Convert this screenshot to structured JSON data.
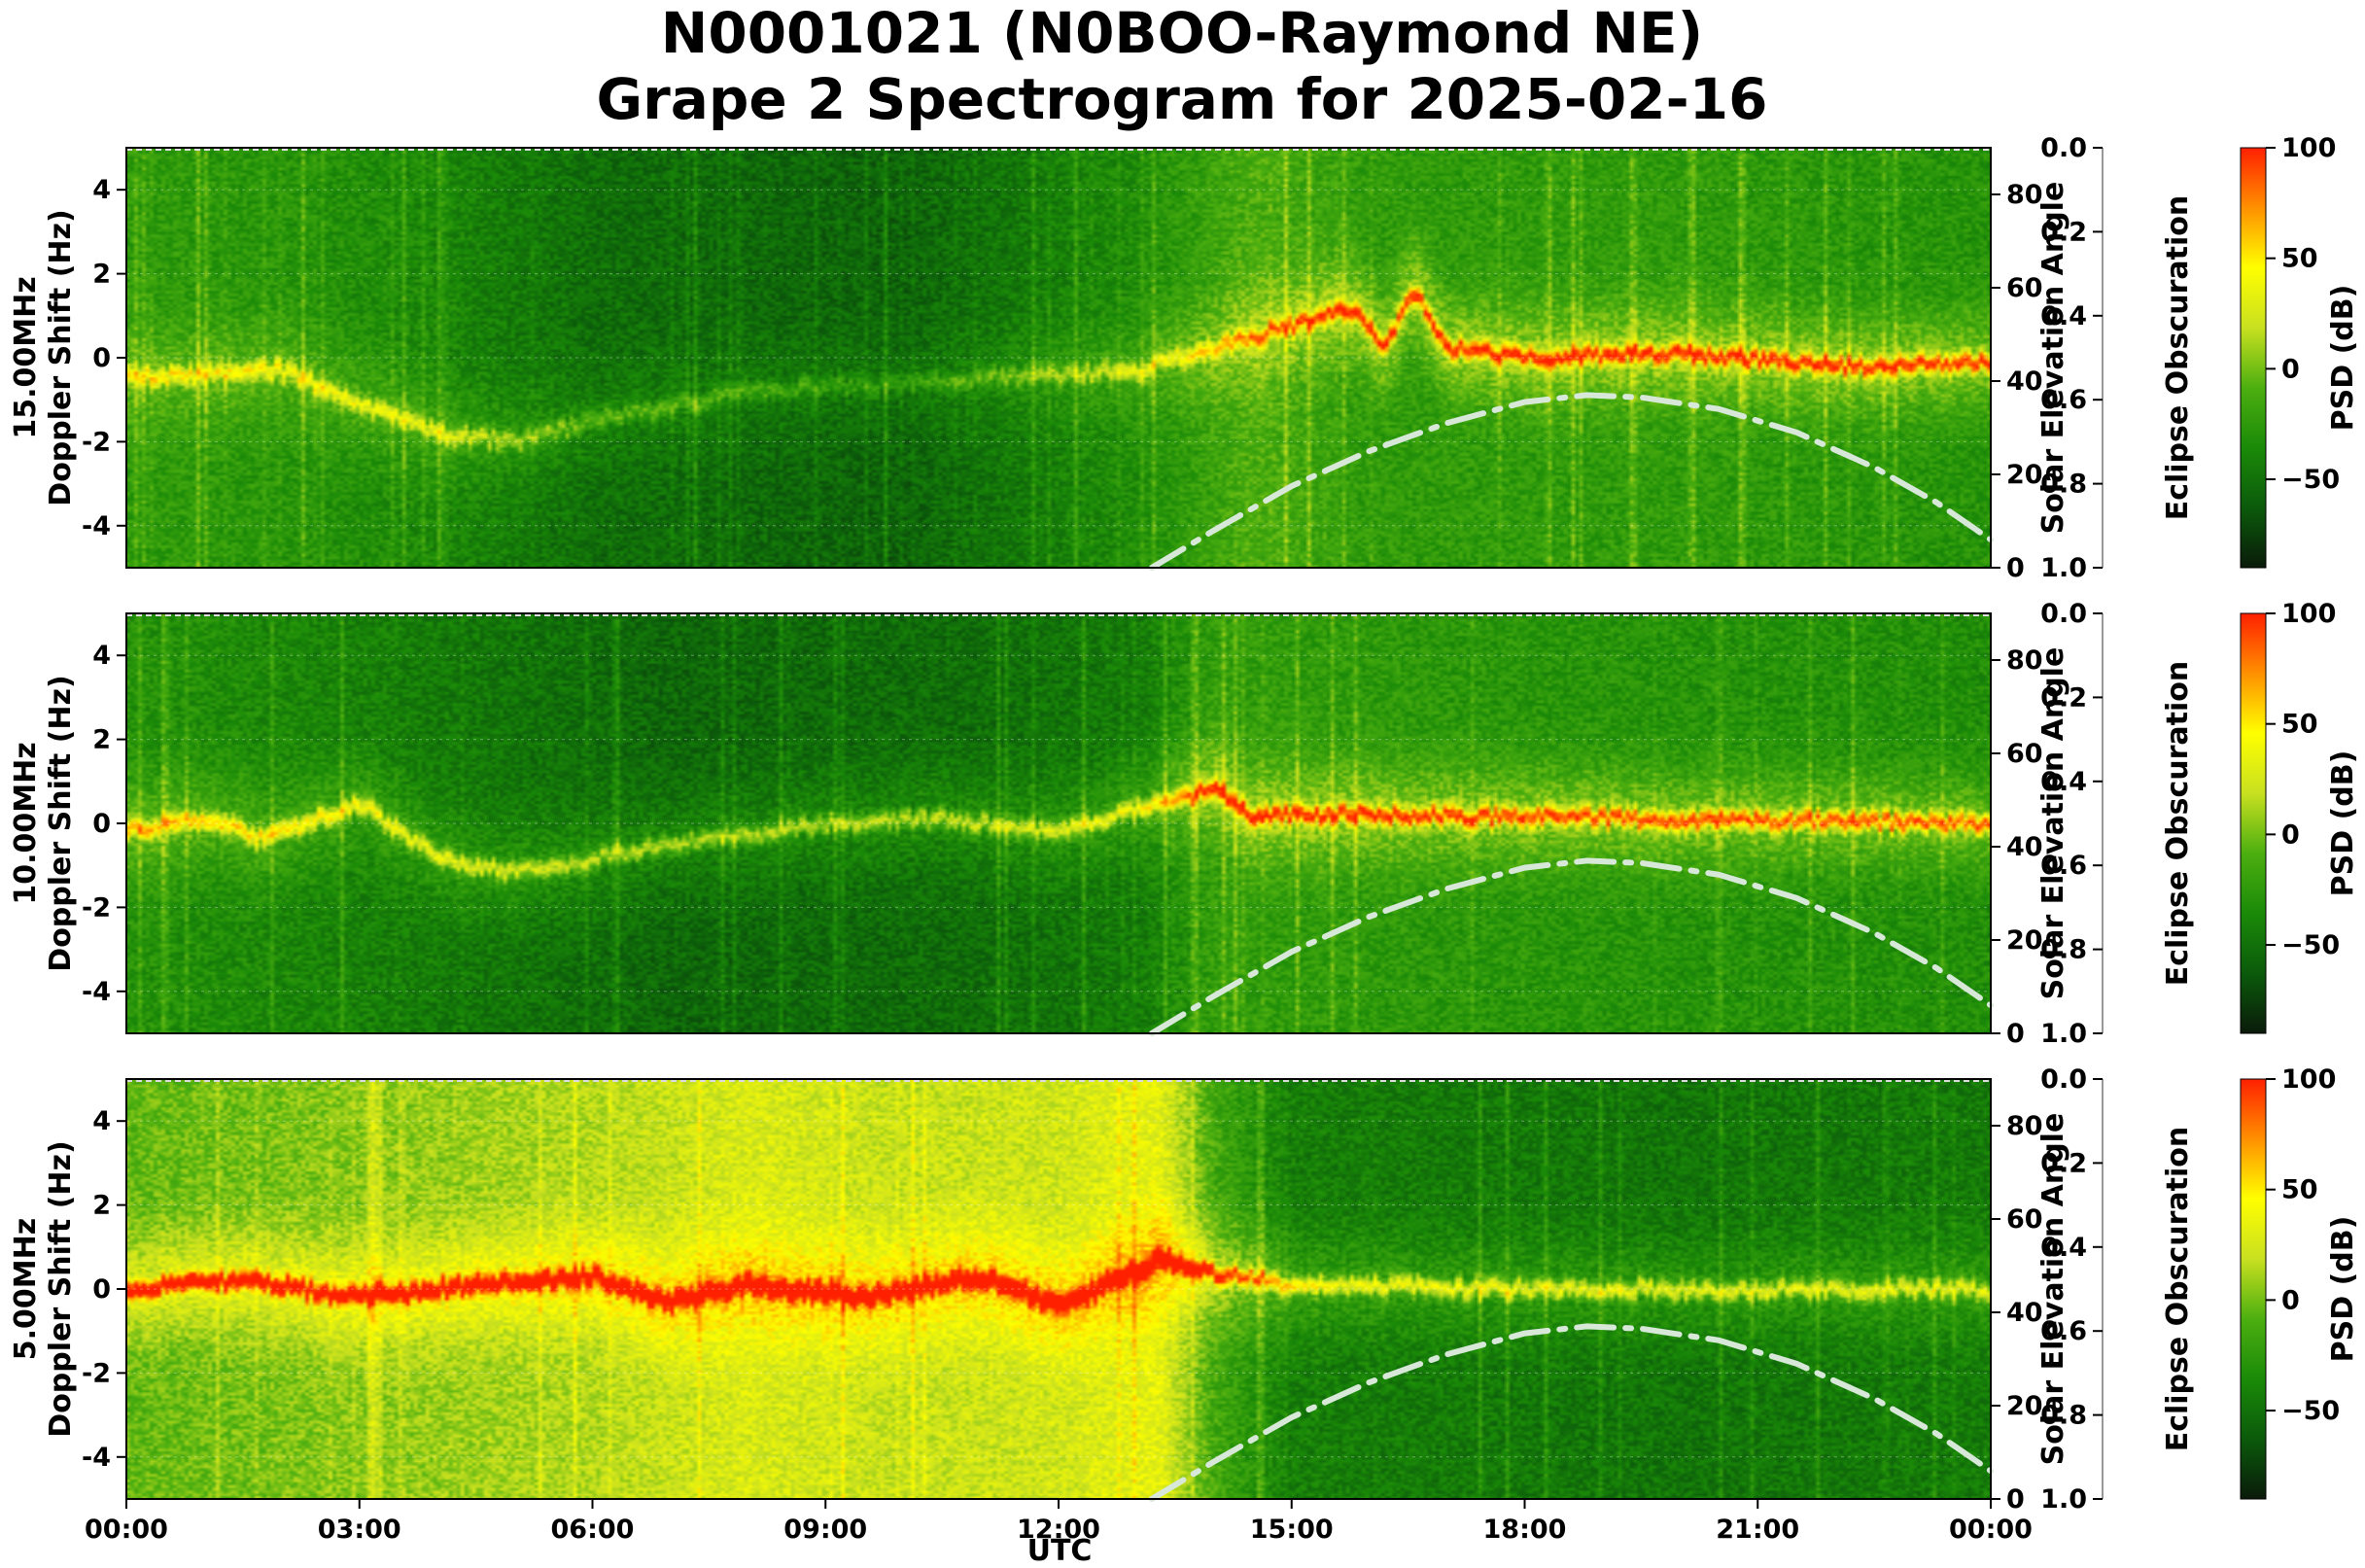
{
  "chart_data": {
    "type": "heatmap",
    "title_lines": [
      "N0001021 (N0BOO-Raymond NE)",
      "Grape 2 Spectrogram for 2025-02-16"
    ],
    "xlabel": "UTC",
    "x_ticks": [
      "00:00",
      "03:00",
      "06:00",
      "09:00",
      "12:00",
      "15:00",
      "18:00",
      "21:00",
      "00:00"
    ],
    "xlim_hours": [
      0,
      24
    ],
    "panels": [
      {
        "ylabel_line1": "15.00MHz",
        "ylabel_line2": "Doppler Shift (Hz)",
        "seed": 15,
        "carrier": [
          [
            0,
            -0.5
          ],
          [
            2,
            -0.3
          ],
          [
            4,
            -1.8
          ],
          [
            5,
            -2.0
          ],
          [
            6,
            -1.5
          ],
          [
            8,
            -0.8
          ],
          [
            11,
            -0.5
          ],
          [
            13,
            -0.3
          ],
          [
            15.8,
            1.2
          ],
          [
            16.2,
            0.3
          ],
          [
            16.6,
            1.6
          ],
          [
            17,
            0.2
          ],
          [
            18,
            0.0
          ],
          [
            20,
            0.1
          ],
          [
            22,
            -0.2
          ],
          [
            24,
            -0.1
          ]
        ],
        "carrier_strength": [
          [
            0,
            0.55
          ],
          [
            4,
            0.5
          ],
          [
            6,
            0.35
          ],
          [
            10,
            0.25
          ],
          [
            13.5,
            0.5
          ],
          [
            15.8,
            0.9
          ],
          [
            24,
            0.9
          ]
        ],
        "background": [
          [
            0,
            0.35
          ],
          [
            2,
            0.33
          ],
          [
            4,
            0.28
          ],
          [
            6,
            0.2
          ],
          [
            10,
            0.17
          ],
          [
            13,
            0.3
          ],
          [
            14.5,
            0.42
          ],
          [
            16,
            0.35
          ],
          [
            20,
            0.35
          ],
          [
            24,
            0.32
          ]
        ]
      },
      {
        "ylabel_line1": "10.00MHz",
        "ylabel_line2": "Doppler Shift (Hz)",
        "seed": 10,
        "carrier": [
          [
            0,
            -0.2
          ],
          [
            1,
            0.1
          ],
          [
            1.8,
            -0.4
          ],
          [
            3,
            0.5
          ],
          [
            4,
            -0.8
          ],
          [
            5,
            -1.2
          ],
          [
            7,
            -0.5
          ],
          [
            9,
            0.0
          ],
          [
            10.5,
            0.1
          ],
          [
            12,
            -0.2
          ],
          [
            13,
            0.3
          ],
          [
            14,
            0.8
          ],
          [
            14.5,
            0.2
          ],
          [
            16,
            0.2
          ],
          [
            20,
            0.1
          ],
          [
            24,
            0.0
          ]
        ],
        "carrier_strength": [
          [
            0,
            0.7
          ],
          [
            3,
            0.6
          ],
          [
            6,
            0.5
          ],
          [
            10,
            0.5
          ],
          [
            13,
            0.6
          ],
          [
            14,
            0.9
          ],
          [
            24,
            0.85
          ]
        ],
        "background": [
          [
            0,
            0.32
          ],
          [
            3,
            0.26
          ],
          [
            5,
            0.22
          ],
          [
            7,
            0.18
          ],
          [
            11,
            0.2
          ],
          [
            13,
            0.24
          ],
          [
            14,
            0.36
          ],
          [
            18,
            0.33
          ],
          [
            24,
            0.3
          ]
        ]
      },
      {
        "ylabel_line1": "5.00MHz",
        "ylabel_line2": "Doppler Shift (Hz)",
        "seed": 5,
        "carrier": [
          [
            0,
            0.0
          ],
          [
            1.5,
            0.2
          ],
          [
            3,
            -0.2
          ],
          [
            4.5,
            0.1
          ],
          [
            6,
            0.3
          ],
          [
            7,
            -0.3
          ],
          [
            8,
            0.1
          ],
          [
            9.5,
            -0.2
          ],
          [
            11,
            0.3
          ],
          [
            12,
            -0.4
          ],
          [
            13.3,
            0.7
          ],
          [
            14,
            0.4
          ],
          [
            15,
            0.1
          ],
          [
            18,
            0.0
          ],
          [
            24,
            0.0
          ]
        ],
        "carrier_strength": [
          [
            0,
            0.9
          ],
          [
            13.5,
            0.95
          ],
          [
            14.5,
            0.8
          ],
          [
            15.5,
            0.6
          ],
          [
            24,
            0.55
          ]
        ],
        "background": [
          [
            0,
            0.45
          ],
          [
            3,
            0.5
          ],
          [
            6,
            0.55
          ],
          [
            8,
            0.62
          ],
          [
            10,
            0.58
          ],
          [
            12,
            0.6
          ],
          [
            13.3,
            0.65
          ],
          [
            14,
            0.4
          ],
          [
            15,
            0.25
          ],
          [
            20,
            0.22
          ],
          [
            24,
            0.24
          ]
        ]
      }
    ],
    "doppler_ylim": [
      -5,
      5
    ],
    "doppler_ticks": [
      4,
      2,
      0,
      -2,
      -4
    ],
    "solar_elevation": {
      "label": "Solar Elevation Angle",
      "ylim": [
        0,
        90
      ],
      "ticks": [
        80,
        60,
        40,
        20,
        0
      ],
      "curve": [
        [
          13.2,
          0
        ],
        [
          14,
          8
        ],
        [
          15,
          17.5
        ],
        [
          16,
          25
        ],
        [
          17,
          31
        ],
        [
          18,
          35.5
        ],
        [
          18.8,
          37
        ],
        [
          19.5,
          36.5
        ],
        [
          20.5,
          34
        ],
        [
          21.5,
          29
        ],
        [
          22.5,
          21.5
        ],
        [
          23.3,
          14
        ],
        [
          24,
          6
        ]
      ],
      "color": "#d8e8d8"
    },
    "eclipse_obscuration": {
      "label": "Eclipse Obscuration",
      "ylim": [
        0,
        1
      ],
      "ticks": [
        "0.0",
        "0.2",
        "0.4",
        "0.6",
        "0.8",
        "1.0"
      ]
    },
    "colorbar": {
      "label": "PSD (dB)",
      "range": [
        -90,
        100
      ],
      "ticks": [
        "100",
        "50",
        "0",
        "−50"
      ],
      "tick_values": [
        100,
        50,
        0,
        -50
      ],
      "colors": [
        "#0a1a0a",
        "#0b5a0b",
        "#1a8a08",
        "#4caf10",
        "#c8e020",
        "#ffff00",
        "#ff9000",
        "#ff2000"
      ]
    }
  }
}
